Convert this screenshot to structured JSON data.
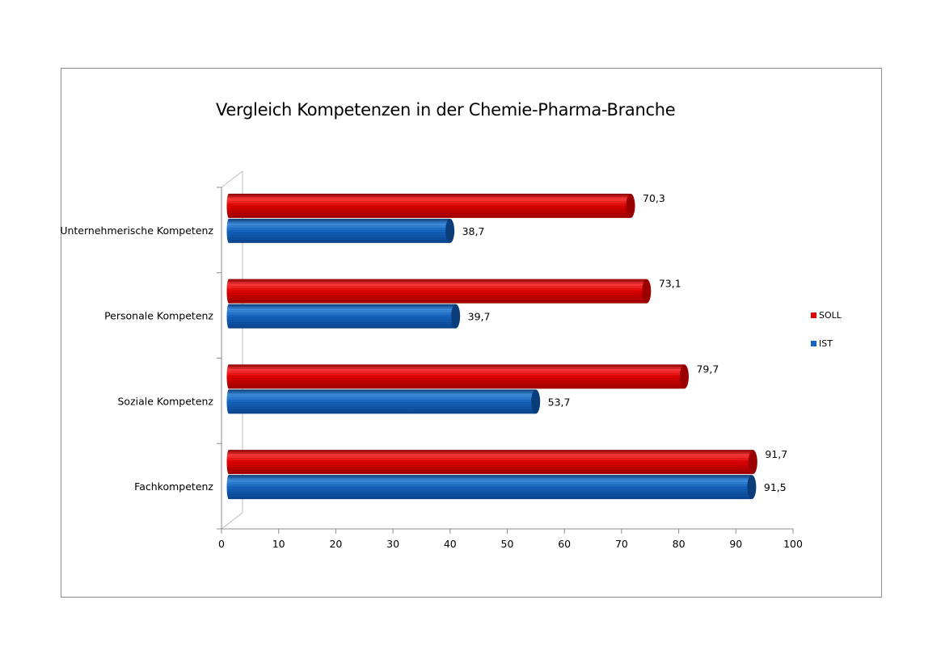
{
  "chart_data": {
    "type": "bar",
    "orientation": "horizontal",
    "style": "3d-cylinder",
    "title": "Vergleich Kompetenzen in der Chemie-Pharma-Branche",
    "categories": [
      "Unternehmerische Kompetenz",
      "Personale Kompetenz",
      "Soziale Kompetenz",
      "Fachkompetenz"
    ],
    "series": [
      {
        "name": "SOLL",
        "color": "#e00000",
        "values": [
          70.3,
          73.1,
          79.7,
          91.7
        ],
        "labels": [
          "70,3",
          "73,1",
          "79,7",
          "91,7"
        ]
      },
      {
        "name": "IST",
        "color": "#1565c0",
        "values": [
          38.7,
          39.7,
          53.7,
          91.5
        ],
        "labels": [
          "38,7",
          "39,7",
          "53,7",
          "91,5"
        ]
      }
    ],
    "xlim": [
      0,
      100
    ],
    "xticks": [
      "0",
      "10",
      "20",
      "30",
      "40",
      "50",
      "60",
      "70",
      "80",
      "90",
      "100"
    ],
    "grid": false,
    "legend_position": "right"
  }
}
